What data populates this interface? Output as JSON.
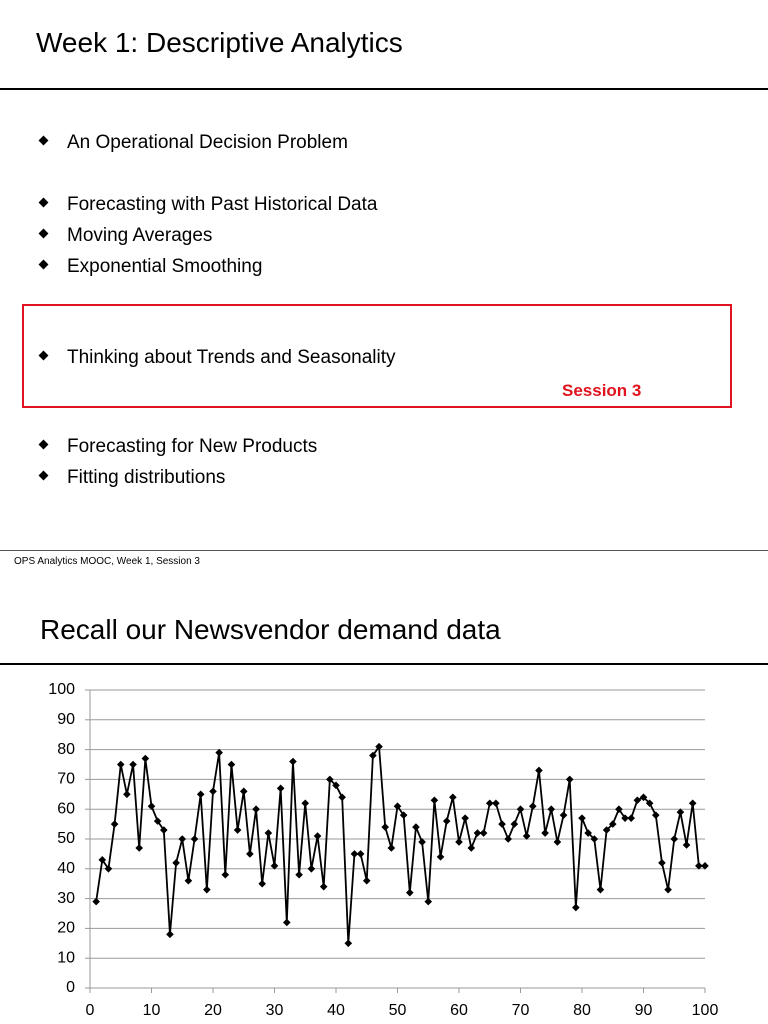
{
  "slide1": {
    "title": "Week 1: Descriptive Analytics",
    "bullets": [
      "An Operational Decision Problem",
      "Forecasting with Past Historical Data",
      "Moving Averages",
      "Exponential Smoothing",
      "Thinking about Trends and Seasonality",
      "Forecasting for New Products",
      "Fitting distributions"
    ],
    "highlight_label": "Session 3",
    "footer": "OPS Analytics MOOC, Week 1, Session 3"
  },
  "slide2": {
    "title": "Recall our Newsvendor demand data"
  },
  "chart_data": {
    "type": "line",
    "x": [
      1,
      2,
      3,
      4,
      5,
      6,
      7,
      8,
      9,
      10,
      11,
      12,
      13,
      14,
      15,
      16,
      17,
      18,
      19,
      20,
      21,
      22,
      23,
      24,
      25,
      26,
      27,
      28,
      29,
      30,
      31,
      32,
      33,
      34,
      35,
      36,
      37,
      38,
      39,
      40,
      41,
      42,
      43,
      44,
      45,
      46,
      47,
      48,
      49,
      50,
      51,
      52,
      53,
      54,
      55,
      56,
      57,
      58,
      59,
      60,
      61,
      62,
      63,
      64,
      65,
      66,
      67,
      68,
      69,
      70,
      71,
      72,
      73,
      74,
      75,
      76,
      77,
      78,
      79,
      80,
      81,
      82,
      83,
      84,
      85,
      86,
      87,
      88,
      89,
      90,
      91,
      92,
      93,
      94,
      95,
      96,
      97,
      98,
      99,
      100
    ],
    "series": [
      {
        "color": "#000000",
        "values": [
          29,
          43,
          40,
          55,
          75,
          65,
          75,
          47,
          77,
          61,
          56,
          53,
          18,
          42,
          50,
          36,
          50,
          65,
          33,
          66,
          79,
          38,
          75,
          53,
          66,
          45,
          60,
          35,
          52,
          41,
          67,
          22,
          76,
          38,
          62,
          40,
          51,
          34,
          70,
          68,
          64,
          15,
          45,
          45,
          36,
          78,
          81,
          54,
          47,
          61,
          58,
          32,
          54,
          49,
          29,
          63,
          44,
          56,
          64,
          49,
          57,
          47,
          52,
          52,
          62,
          62,
          55,
          50,
          55,
          60,
          51,
          61,
          73,
          52,
          60,
          49,
          58,
          70,
          27,
          57,
          52,
          50,
          33,
          53,
          55,
          60,
          57,
          57,
          63,
          64,
          62,
          58,
          42,
          33,
          50,
          59,
          48,
          62,
          41,
          41
        ]
      }
    ],
    "xlim": [
      0,
      100
    ],
    "xticks": [
      0,
      10,
      20,
      30,
      40,
      50,
      60,
      70,
      80,
      90,
      100
    ],
    "ylim": [
      0,
      100
    ],
    "yticks": [
      0,
      10,
      20,
      30,
      40,
      50,
      60,
      70,
      80,
      90,
      100
    ],
    "grid": true
  }
}
